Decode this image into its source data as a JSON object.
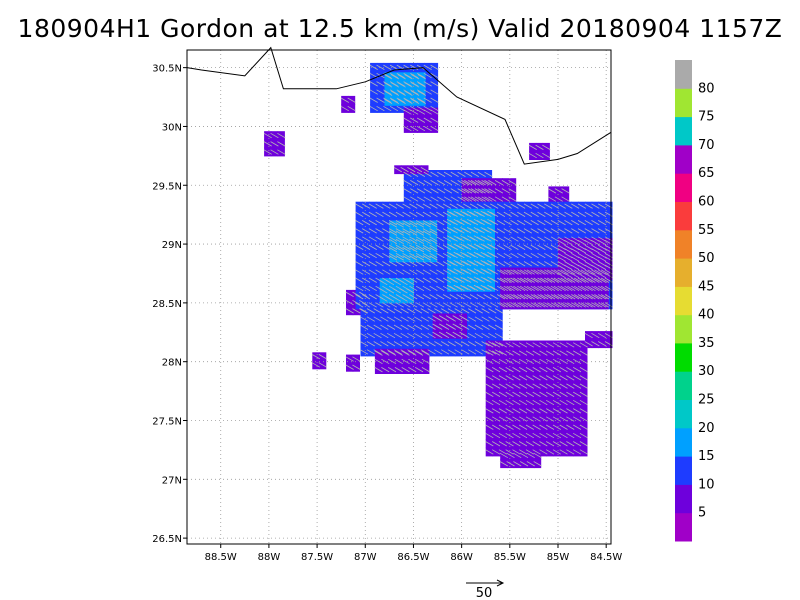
{
  "title": "180904H1 Gordon at 12.5 km (m/s) Valid 20180904 1157Z",
  "map": {
    "lon_range": [
      -88.85,
      -84.45
    ],
    "lat_range": [
      26.45,
      30.65
    ],
    "lon_ticks": [
      {
        "value": -88.5,
        "label": "88.5W"
      },
      {
        "value": -88,
        "label": "88W"
      },
      {
        "value": -87.5,
        "label": "87.5W"
      },
      {
        "value": -87,
        "label": "87W"
      },
      {
        "value": -86.5,
        "label": "86.5W"
      },
      {
        "value": -86,
        "label": "86W"
      },
      {
        "value": -85.5,
        "label": "85.5W"
      },
      {
        "value": -85,
        "label": "85W"
      },
      {
        "value": -84.5,
        "label": "84.5W"
      }
    ],
    "lat_ticks": [
      {
        "value": 26.5,
        "label": "26.5N"
      },
      {
        "value": 27,
        "label": "27N"
      },
      {
        "value": 27.5,
        "label": "27.5N"
      },
      {
        "value": 28,
        "label": "28N"
      },
      {
        "value": 28.5,
        "label": "28.5N"
      },
      {
        "value": 29,
        "label": "29N"
      },
      {
        "value": 29.5,
        "label": "29.5N"
      },
      {
        "value": 30,
        "label": "30N"
      },
      {
        "value": 30.5,
        "label": "30.5N"
      }
    ],
    "grid": "dotted",
    "coastline": [
      [
        -88.85,
        30.5
      ],
      [
        -88.7,
        30.48
      ],
      [
        -88.25,
        30.43
      ],
      [
        -87.98,
        30.67
      ],
      [
        -87.85,
        30.32
      ],
      [
        -87.6,
        30.32
      ],
      [
        -87.3,
        30.32
      ],
      [
        -87.0,
        30.38
      ],
      [
        -86.7,
        30.48
      ],
      [
        -86.4,
        30.5
      ],
      [
        -86.05,
        30.25
      ],
      [
        -85.55,
        30.06
      ],
      [
        -85.35,
        29.68
      ],
      [
        -85.0,
        29.72
      ],
      [
        -84.8,
        29.77
      ],
      [
        -84.45,
        29.95
      ]
    ]
  },
  "wind_field": {
    "units": "m/s",
    "cell_size_deg": 0.07,
    "arrow_dir_deg": 300,
    "patches": [
      {
        "lon": [
          -86.95,
          -86.3
        ],
        "lat": [
          30.12,
          30.48
        ],
        "level": 15
      },
      {
        "lon": [
          -86.8,
          -86.4
        ],
        "lat": [
          30.18,
          30.42
        ],
        "level": 20
      },
      {
        "lon": [
          -86.6,
          -86.25
        ],
        "lat": [
          29.95,
          30.12
        ],
        "level": 10
      },
      {
        "lon": [
          -88.05,
          -87.85
        ],
        "lat": [
          29.75,
          29.95
        ],
        "level": 10
      },
      {
        "lon": [
          -87.25,
          -87.15
        ],
        "lat": [
          30.12,
          30.22
        ],
        "level": 10
      },
      {
        "lon": [
          -85.3,
          -85.15
        ],
        "lat": [
          29.72,
          29.82
        ],
        "level": 10
      },
      {
        "lon": [
          -85.1,
          -84.95
        ],
        "lat": [
          29.35,
          29.45
        ],
        "level": 10
      },
      {
        "lon": [
          -87.2,
          -87.05
        ],
        "lat": [
          28.4,
          28.6
        ],
        "level": 10
      },
      {
        "lon": [
          -87.55,
          -87.42
        ],
        "lat": [
          27.94,
          28.06
        ],
        "level": 10
      },
      {
        "lon": [
          -87.2,
          -87.1
        ],
        "lat": [
          27.92,
          28.03
        ],
        "level": 10
      },
      {
        "lon": [
          -86.6,
          -85.7
        ],
        "lat": [
          29.35,
          29.6
        ],
        "level": 15
      },
      {
        "lon": [
          -86.7,
          -86.4
        ],
        "lat": [
          29.6,
          29.65
        ],
        "level": 10
      },
      {
        "lon": [
          -86.0,
          -85.45
        ],
        "lat": [
          29.35,
          29.55
        ],
        "level": 10
      },
      {
        "lon": [
          -87.1,
          -84.45
        ],
        "lat": [
          28.45,
          29.35
        ],
        "level": 15
      },
      {
        "lon": [
          -87.05,
          -85.6
        ],
        "lat": [
          28.05,
          28.45
        ],
        "level": 15
      },
      {
        "lon": [
          -86.9,
          -86.4
        ],
        "lat": [
          27.9,
          28.1
        ],
        "level": 10
      },
      {
        "lon": [
          -86.3,
          -86.0
        ],
        "lat": [
          28.2,
          28.35
        ],
        "level": 10
      },
      {
        "lon": [
          -85.6,
          -84.5
        ],
        "lat": [
          28.45,
          28.75
        ],
        "level": 10
      },
      {
        "lon": [
          -85.0,
          -84.5
        ],
        "lat": [
          28.7,
          29.0
        ],
        "level": 10
      },
      {
        "lon": [
          -86.75,
          -86.3
        ],
        "lat": [
          28.85,
          29.15
        ],
        "level": 20
      },
      {
        "lon": [
          -86.85,
          -86.55
        ],
        "lat": [
          28.5,
          28.7
        ],
        "level": 20
      },
      {
        "lon": [
          -86.15,
          -85.7
        ],
        "lat": [
          28.6,
          29.25
        ],
        "level": 20
      },
      {
        "lon": [
          -84.72,
          -84.45
        ],
        "lat": [
          28.12,
          28.22
        ],
        "level": 10
      },
      {
        "lon": [
          -85.75,
          -84.75
        ],
        "lat": [
          27.2,
          28.15
        ],
        "level": 10
      },
      {
        "lon": [
          -85.6,
          -85.2
        ],
        "lat": [
          27.1,
          27.2
        ],
        "level": 10
      }
    ]
  },
  "reference_vector": {
    "label": "50"
  },
  "colorbar": {
    "colors": [
      "#a000c8",
      "#6e00dc",
      "#1e3cff",
      "#00a0ff",
      "#00c8c8",
      "#00d28c",
      "#00dc00",
      "#a0e632",
      "#e6dc32",
      "#e6af2d",
      "#f08228",
      "#fa3c3c",
      "#f00082",
      "#a000c8",
      "#00c8c8",
      "#a0e632",
      "#aaaaaa"
    ],
    "labels": [
      "5",
      "10",
      "15",
      "20",
      "25",
      "30",
      "35",
      "40",
      "45",
      "50",
      "55",
      "60",
      "65",
      "70",
      "75",
      "80"
    ]
  }
}
